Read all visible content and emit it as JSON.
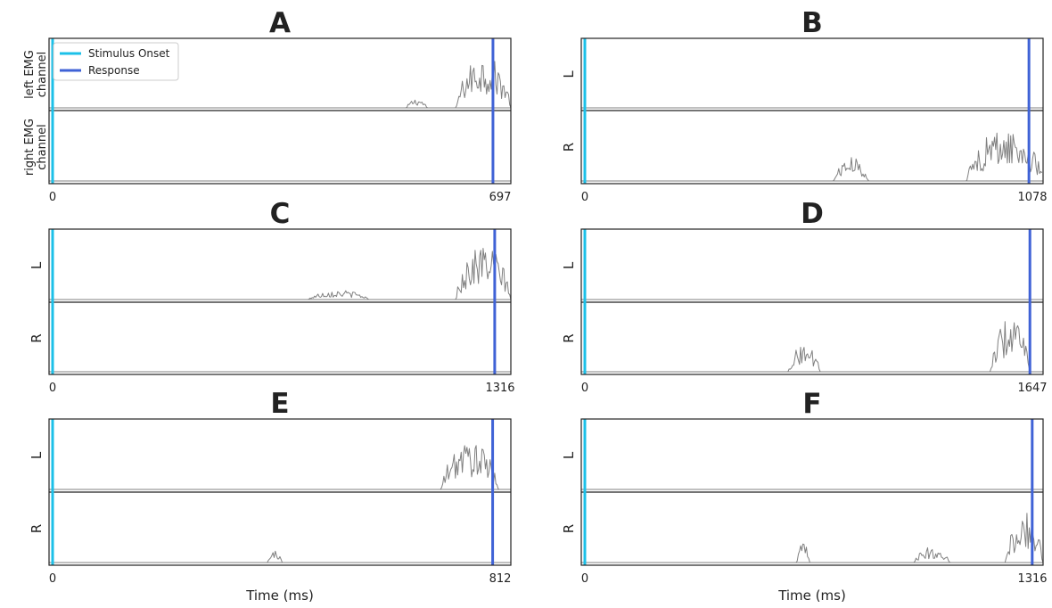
{
  "figure": {
    "xlabel": "Time (ms)",
    "legend": {
      "placement": "top-left",
      "entries": [
        {
          "label": "Stimulus Onset",
          "color": "#1cc0e8"
        },
        {
          "label": "Response",
          "color": "#3f62d6"
        }
      ]
    },
    "colors": {
      "emg": "#808080",
      "frame": "#222222",
      "baseline": "#808080"
    }
  },
  "chart_data": [
    {
      "panel": "A",
      "type": "line",
      "xlim": [
        0,
        697
      ],
      "xticks": [
        "0",
        "697"
      ],
      "stimulus_onset": 0,
      "response": 670,
      "channels": [
        {
          "label_lines": [
            "left EMG",
            "channel"
          ],
          "bursts": [
            {
              "start": 540,
              "end": 570,
              "amp": 0.14
            },
            {
              "start": 615,
              "end": 697,
              "amp": 0.8
            }
          ]
        },
        {
          "label_lines": [
            "right EMG",
            "channel"
          ],
          "bursts": []
        }
      ]
    },
    {
      "panel": "B",
      "type": "line",
      "xlim": [
        0,
        1078
      ],
      "xticks": [
        "0",
        "1078"
      ],
      "stimulus_onset": 0,
      "response": 1045,
      "channels": [
        {
          "label_lines": [
            "L"
          ],
          "bursts": []
        },
        {
          "label_lines": [
            "R"
          ],
          "bursts": [
            {
              "start": 590,
              "end": 670,
              "amp": 0.35
            },
            {
              "start": 900,
              "end": 1078,
              "amp": 0.78
            }
          ]
        }
      ]
    },
    {
      "panel": "C",
      "type": "line",
      "xlim": [
        0,
        1316
      ],
      "xticks": [
        "0",
        "1316"
      ],
      "stimulus_onset": 0,
      "response": 1270,
      "channels": [
        {
          "label_lines": [
            "L"
          ],
          "bursts": [
            {
              "start": 740,
              "end": 910,
              "amp": 0.14
            },
            {
              "start": 1160,
              "end": 1316,
              "amp": 0.82
            }
          ]
        },
        {
          "label_lines": [
            "R"
          ],
          "bursts": []
        }
      ]
    },
    {
      "panel": "D",
      "type": "line",
      "xlim": [
        0,
        1647
      ],
      "xticks": [
        "0",
        "1647"
      ],
      "stimulus_onset": 0,
      "response": 1600,
      "channels": [
        {
          "label_lines": [
            "L"
          ],
          "bursts": []
        },
        {
          "label_lines": [
            "R"
          ],
          "bursts": [
            {
              "start": 740,
              "end": 850,
              "amp": 0.42
            },
            {
              "start": 1460,
              "end": 1600,
              "amp": 0.82
            }
          ]
        }
      ]
    },
    {
      "panel": "E",
      "type": "line",
      "xlim": [
        0,
        812
      ],
      "xticks": [
        "0",
        "812"
      ],
      "stimulus_onset": 0,
      "response": 780,
      "channels": [
        {
          "label_lines": [
            "L"
          ],
          "bursts": [
            {
              "start": 690,
              "end": 790,
              "amp": 0.72
            }
          ]
        },
        {
          "label_lines": [
            "R"
          ],
          "bursts": [
            {
              "start": 385,
              "end": 410,
              "amp": 0.18
            }
          ]
        }
      ]
    },
    {
      "panel": "F",
      "type": "line",
      "xlim": [
        0,
        1316
      ],
      "xticks": [
        "0",
        "1316"
      ],
      "stimulus_onset": 0,
      "response": 1285,
      "channels": [
        {
          "label_lines": [
            "L"
          ],
          "bursts": []
        },
        {
          "label_lines": [
            "R"
          ],
          "bursts": [
            {
              "start": 615,
              "end": 650,
              "amp": 0.3
            },
            {
              "start": 950,
              "end": 1050,
              "amp": 0.23
            },
            {
              "start": 1210,
              "end": 1316,
              "amp": 0.75
            }
          ]
        }
      ]
    }
  ]
}
